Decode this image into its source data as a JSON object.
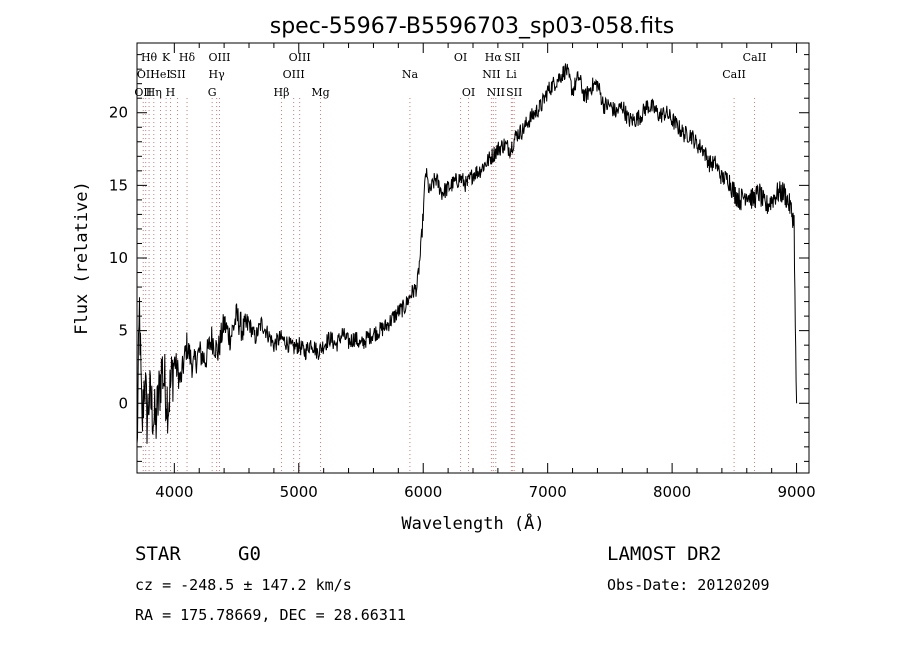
{
  "chart_data": {
    "type": "line",
    "title": "spec-55967-B5596703_sp03-058.fits",
    "xlabel": "Wavelength (Å)",
    "ylabel": "Flux (relative)",
    "xlim": [
      3700,
      9100
    ],
    "ylim": [
      -4.8,
      24.8
    ],
    "xticks": [
      4000,
      5000,
      6000,
      7000,
      8000,
      9000
    ],
    "yticks": [
      0,
      5,
      10,
      15,
      20
    ],
    "grid": false,
    "legend": "none",
    "series": [
      {
        "x": [
          3700,
          3720,
          3740,
          3760,
          3780,
          3800,
          3850,
          3900,
          3950,
          4000,
          4050,
          4100,
          4150,
          4200,
          4250,
          4300,
          4350,
          4400,
          4450,
          4500,
          4550,
          4600,
          4650,
          4700,
          4750,
          4800,
          4850,
          4900,
          4950,
          5000,
          5050,
          5100,
          5150,
          5200,
          5250,
          5300,
          5350,
          5400,
          5450,
          5500,
          5550,
          5600,
          5650,
          5700,
          5750,
          5800,
          5850,
          5900,
          5950,
          5980,
          6000,
          6020,
          6050,
          6100,
          6150,
          6200,
          6250,
          6300,
          6350,
          6400,
          6450,
          6500,
          6550,
          6600,
          6650,
          6700,
          6750,
          6800,
          6850,
          6900,
          6950,
          7000,
          7050,
          7100,
          7150,
          7200,
          7250,
          7300,
          7350,
          7400,
          7450,
          7500,
          7550,
          7600,
          7650,
          7700,
          7750,
          7800,
          7850,
          7900,
          7950,
          8000,
          8050,
          8100,
          8150,
          8200,
          8250,
          8300,
          8350,
          8400,
          8450,
          8500,
          8550,
          8600,
          8650,
          8700,
          8750,
          8800,
          8850,
          8900,
          8950,
          8980,
          8990,
          9000
        ],
        "values": [
          -3.5,
          6.5,
          -2.0,
          2.0,
          -1.0,
          0.5,
          -1.5,
          2.5,
          0.0,
          3.0,
          1.5,
          4.0,
          2.5,
          3.5,
          3.0,
          4.5,
          3.5,
          5.5,
          4.5,
          6.0,
          5.0,
          5.5,
          4.5,
          5.5,
          4.8,
          4.0,
          4.5,
          4.2,
          3.8,
          4.0,
          3.5,
          4.2,
          3.5,
          4.0,
          4.5,
          4.0,
          4.8,
          4.2,
          4.5,
          4.0,
          4.5,
          4.8,
          5.0,
          5.3,
          5.8,
          6.3,
          6.6,
          7.5,
          8.0,
          10.5,
          13.0,
          16.0,
          14.5,
          15.5,
          14.5,
          14.8,
          15.2,
          15.5,
          15.0,
          15.8,
          16.0,
          16.5,
          17.0,
          17.5,
          17.8,
          17.5,
          18.5,
          18.8,
          19.5,
          20.0,
          20.5,
          21.5,
          22.0,
          22.5,
          23.0,
          21.5,
          22.5,
          21.0,
          21.8,
          22.0,
          20.5,
          20.5,
          20.0,
          20.5,
          19.5,
          19.5,
          19.8,
          20.5,
          20.3,
          19.8,
          20.0,
          19.5,
          19.0,
          18.5,
          18.5,
          17.8,
          17.5,
          16.5,
          16.5,
          15.5,
          15.5,
          14.5,
          14.0,
          14.5,
          14.0,
          14.5,
          13.5,
          14.0,
          14.5,
          14.5,
          13.5,
          12.5,
          5.0,
          0.0
        ]
      }
    ],
    "annotation_color": "#d47a7a",
    "annotations": [
      {
        "x": 3750,
        "row": 2,
        "label": "OII"
      },
      {
        "x": 3770,
        "row": 1,
        "label": "OII"
      },
      {
        "x": 3797,
        "row": 0,
        "label": "Hθ"
      },
      {
        "x": 3835,
        "row": 2,
        "label": "Hη"
      },
      {
        "x": 3889,
        "row": 1,
        "label": "HeI"
      },
      {
        "x": 3934,
        "row": 0,
        "label": "K"
      },
      {
        "x": 3969,
        "row": 2,
        "label": "H"
      },
      {
        "x": 4026,
        "row": 1,
        "label": "SII"
      },
      {
        "x": 4102,
        "row": 0,
        "label": "Hδ"
      },
      {
        "x": 4304,
        "row": 2,
        "label": "G"
      },
      {
        "x": 4340,
        "row": 1,
        "label": "Hγ"
      },
      {
        "x": 4363,
        "row": 0,
        "label": "OIII"
      },
      {
        "x": 4861,
        "row": 2,
        "label": "Hβ"
      },
      {
        "x": 4959,
        "row": 1,
        "label": "OIII"
      },
      {
        "x": 5007,
        "row": 0,
        "label": "OIII"
      },
      {
        "x": 5175,
        "row": 2,
        "label": "Mg"
      },
      {
        "x": 5893,
        "row": 1,
        "label": "Na"
      },
      {
        "x": 6300,
        "row": 0,
        "label": "OI"
      },
      {
        "x": 6364,
        "row": 2,
        "label": "OI"
      },
      {
        "x": 6548,
        "row": 1,
        "label": "NII"
      },
      {
        "x": 6563,
        "row": 0,
        "label": "Hα"
      },
      {
        "x": 6583,
        "row": 2,
        "label": "NII"
      },
      {
        "x": 6708,
        "row": 1,
        "label": "Li"
      },
      {
        "x": 6716,
        "row": 0,
        "label": "SII"
      },
      {
        "x": 6731,
        "row": 2,
        "label": "SII"
      },
      {
        "x": 8498,
        "row": 1,
        "label": "CaII"
      },
      {
        "x": 8662,
        "row": 0,
        "label": "CaII"
      }
    ]
  },
  "info": {
    "object_class": "STAR",
    "subclass": "G0",
    "survey": "LAMOST DR2",
    "redshift": "cz = -248.5 ± 147.2 km/s",
    "obs_date": "Obs-Date: 20120209",
    "coords": "RA = 175.78669, DEC =  28.66311"
  }
}
